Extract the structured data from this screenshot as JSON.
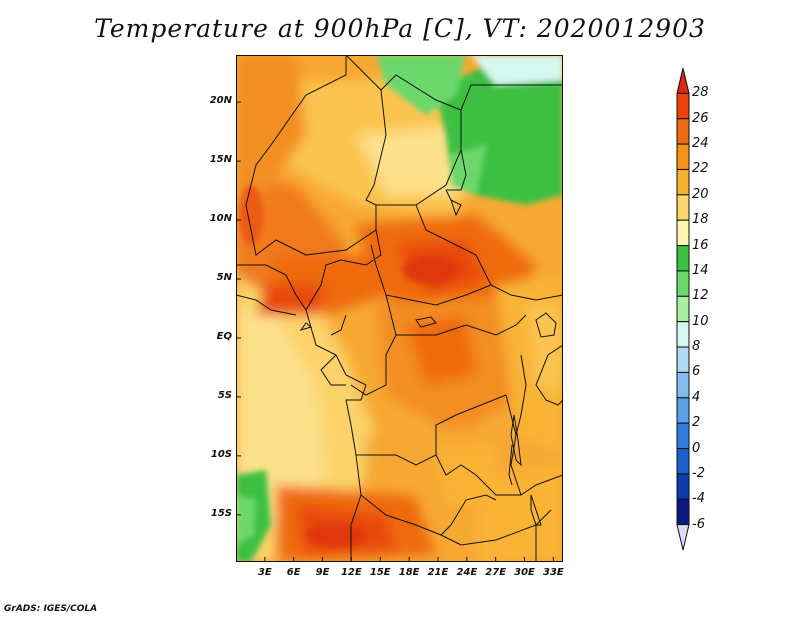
{
  "title": "Temperature at 900hPa [C], VT: 2020012903",
  "credit": "GrADS: IGES/COLA",
  "map": {
    "lon_range": [
      0,
      34
    ],
    "lat_range": [
      -19,
      24
    ],
    "lat_ticks": [
      {
        "value": 20,
        "label": "20N"
      },
      {
        "value": 15,
        "label": "15N"
      },
      {
        "value": 10,
        "label": "10N"
      },
      {
        "value": 5,
        "label": "5N"
      },
      {
        "value": 0,
        "label": "EQ"
      },
      {
        "value": -5,
        "label": "5S"
      },
      {
        "value": -10,
        "label": "10S"
      },
      {
        "value": -15,
        "label": "15S"
      }
    ],
    "lon_ticks": [
      {
        "value": 3,
        "label": "3E"
      },
      {
        "value": 6,
        "label": "6E"
      },
      {
        "value": 9,
        "label": "9E"
      },
      {
        "value": 12,
        "label": "12E"
      },
      {
        "value": 15,
        "label": "15E"
      },
      {
        "value": 18,
        "label": "18E"
      },
      {
        "value": 21,
        "label": "21E"
      },
      {
        "value": 24,
        "label": "24E"
      },
      {
        "value": 27,
        "label": "27E"
      },
      {
        "value": 30,
        "label": "30E"
      },
      {
        "value": 33,
        "label": "33E"
      }
    ]
  },
  "colorbar": {
    "levels": [
      "28",
      "26",
      "24",
      "22",
      "20",
      "18",
      "16",
      "14",
      "12",
      "10",
      "8",
      "6",
      "4",
      "2",
      "0",
      "-2",
      "-4",
      "-6"
    ],
    "colors": [
      "#d92a12",
      "#f0400c",
      "#ef6a10",
      "#f49218",
      "#f9b334",
      "#fbd86a",
      "#fff5b0",
      "#3cc042",
      "#6cd86c",
      "#a8f0a0",
      "#d4f8f0",
      "#b0daf4",
      "#82bcef",
      "#5aa0e6",
      "#2f7ddc",
      "#1a5ed0",
      "#0c3ab0",
      "#0a1880",
      "#dcdcf8"
    ]
  }
}
